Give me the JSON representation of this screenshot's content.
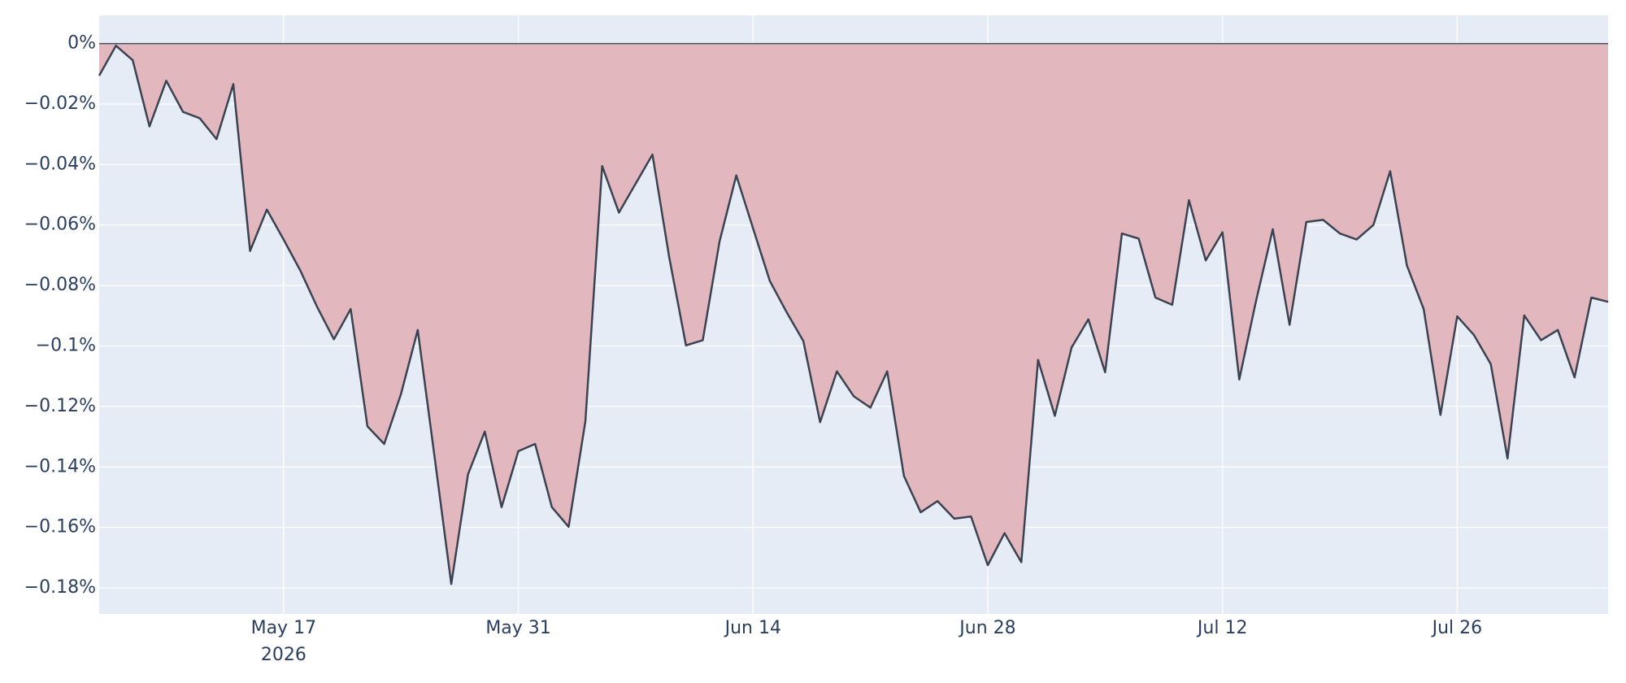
{
  "chart_data": {
    "type": "area",
    "x": [
      "2026-05-06",
      "2026-05-07",
      "2026-05-08",
      "2026-05-09",
      "2026-05-10",
      "2026-05-11",
      "2026-05-12",
      "2026-05-13",
      "2026-05-14",
      "2026-05-15",
      "2026-05-16",
      "2026-05-17",
      "2026-05-18",
      "2026-05-19",
      "2026-05-20",
      "2026-05-21",
      "2026-05-22",
      "2026-05-23",
      "2026-05-24",
      "2026-05-25",
      "2026-05-26",
      "2026-05-27",
      "2026-05-28",
      "2026-05-29",
      "2026-05-30",
      "2026-05-31",
      "2026-06-01",
      "2026-06-02",
      "2026-06-03",
      "2026-06-04",
      "2026-06-05",
      "2026-06-06",
      "2026-06-07",
      "2026-06-08",
      "2026-06-09",
      "2026-06-10",
      "2026-06-11",
      "2026-06-12",
      "2026-06-13",
      "2026-06-14",
      "2026-06-15",
      "2026-06-16",
      "2026-06-17",
      "2026-06-18",
      "2026-06-19",
      "2026-06-20",
      "2026-06-21",
      "2026-06-22",
      "2026-06-23",
      "2026-06-24",
      "2026-06-25",
      "2026-06-26",
      "2026-06-27",
      "2026-06-28",
      "2026-06-29",
      "2026-06-30",
      "2026-07-01",
      "2026-07-02",
      "2026-07-03",
      "2026-07-04",
      "2026-07-05",
      "2026-07-06",
      "2026-07-07",
      "2026-07-08",
      "2026-07-09",
      "2026-07-10",
      "2026-07-11",
      "2026-07-12",
      "2026-07-13",
      "2026-07-14",
      "2026-07-15",
      "2026-07-16",
      "2026-07-17",
      "2026-07-18",
      "2026-07-19",
      "2026-07-20",
      "2026-07-21",
      "2026-07-22",
      "2026-07-23",
      "2026-07-24",
      "2026-07-25",
      "2026-07-26",
      "2026-07-27",
      "2026-07-28",
      "2026-07-29",
      "2026-07-30",
      "2026-07-31",
      "2026-08-01",
      "2026-08-02",
      "2026-08-03",
      "2026-08-04"
    ],
    "series": [
      {
        "line_color": "#3b4252",
        "fill_color": "#e2b8be",
        "values": [
          -0.0106,
          -0.0007,
          -0.0055,
          -0.0274,
          -0.0123,
          -0.0226,
          -0.0247,
          -0.0316,
          -0.0134,
          -0.0686,
          -0.0549,
          -0.0648,
          -0.0751,
          -0.0871,
          -0.0978,
          -0.0878,
          -0.1266,
          -0.1324,
          -0.1159,
          -0.0947,
          -0.1365,
          -0.1787,
          -0.1424,
          -0.1283,
          -0.1533,
          -0.1348,
          -0.1324,
          -0.1533,
          -0.1598,
          -0.1249,
          -0.0405,
          -0.0559,
          -0.0463,
          -0.0367,
          -0.0707,
          -0.0998,
          -0.0981,
          -0.0655,
          -0.0436,
          -0.0611,
          -0.0785,
          -0.0888,
          -0.0984,
          -0.1252,
          -0.1084,
          -0.1166,
          -0.1204,
          -0.1084,
          -0.143,
          -0.155,
          -0.1513,
          -0.1571,
          -0.1564,
          -0.1725,
          -0.1619,
          -0.1715,
          -0.1046,
          -0.1231,
          -0.1005,
          -0.0912,
          -0.1087,
          -0.0628,
          -0.0645,
          -0.084,
          -0.0864,
          -0.0518,
          -0.0717,
          -0.0624,
          -0.1111,
          -0.0851,
          -0.0614,
          -0.093,
          -0.059,
          -0.0583,
          -0.0628,
          -0.0648,
          -0.06,
          -0.0422,
          -0.0734,
          -0.0878,
          -0.1228,
          -0.0902,
          -0.0964,
          -0.106,
          -0.1372,
          -0.0899,
          -0.0981,
          -0.0947,
          -0.1104,
          -0.084,
          -0.0854
        ]
      }
    ],
    "xlim": [
      "2026-05-06",
      "2026-08-04"
    ],
    "xticks": [
      {
        "value": "2026-05-17",
        "label": "May 17",
        "sublabel": "2026"
      },
      {
        "value": "2026-05-31",
        "label": "May 31"
      },
      {
        "value": "2026-06-14",
        "label": "Jun 14"
      },
      {
        "value": "2026-06-28",
        "label": "Jun 28"
      },
      {
        "value": "2026-07-12",
        "label": "Jul 12"
      },
      {
        "value": "2026-07-26",
        "label": "Jul 26"
      }
    ],
    "ylim": [
      -0.1886,
      0.0093
    ],
    "yticks": [
      {
        "value": 0,
        "label": "0%"
      },
      {
        "value": -0.02,
        "label": "−0.02%"
      },
      {
        "value": -0.04,
        "label": "−0.04%"
      },
      {
        "value": -0.06,
        "label": "−0.06%"
      },
      {
        "value": -0.08,
        "label": "−0.08%"
      },
      {
        "value": -0.1,
        "label": "−0.1%"
      },
      {
        "value": -0.12,
        "label": "−0.12%"
      },
      {
        "value": -0.14,
        "label": "−0.14%"
      },
      {
        "value": -0.16,
        "label": "−0.16%"
      },
      {
        "value": -0.18,
        "label": "−0.18%"
      }
    ],
    "grid": true,
    "plot_bgcolor": "#e5ecf6"
  }
}
